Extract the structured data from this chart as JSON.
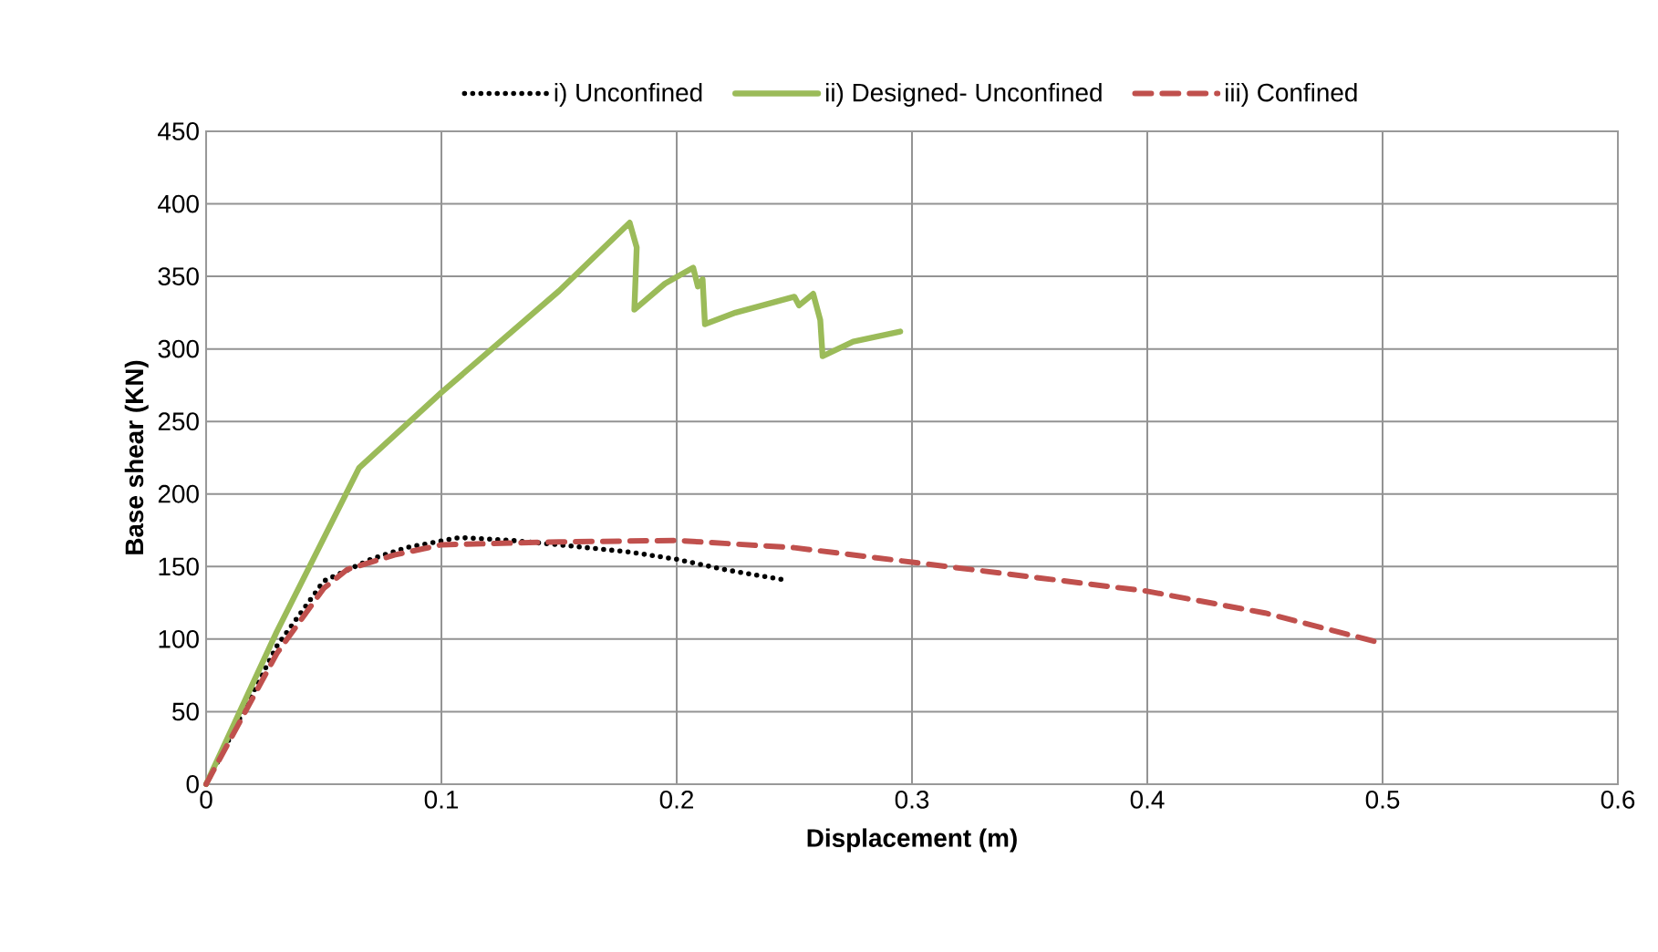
{
  "chart_data": {
    "type": "line",
    "xlabel": "Displacement (m)",
    "ylabel": "Base shear (KN)",
    "xlim": [
      0,
      0.6
    ],
    "ylim": [
      0,
      450
    ],
    "xticks": [
      0,
      0.1,
      0.2,
      0.3,
      0.4,
      0.5,
      0.6
    ],
    "yticks": [
      0,
      50,
      100,
      150,
      200,
      250,
      300,
      350,
      400,
      450
    ],
    "grid": true,
    "legend": "top",
    "marker": "none",
    "series": [
      {
        "name": "i) Unconfined",
        "color": "#000000",
        "line_style": "dotted",
        "x": [
          0,
          0.03,
          0.05,
          0.07,
          0.085,
          0.1075,
          0.13,
          0.15,
          0.18,
          0.2,
          0.22,
          0.245
        ],
        "values": [
          0,
          95,
          140,
          155,
          163,
          170,
          168,
          165,
          160,
          155,
          148,
          141
        ]
      },
      {
        "name": "ii) Designed- Unconfined",
        "color": "#9bbb59",
        "line_style": "solid",
        "x": [
          0,
          0.03,
          0.065,
          0.1,
          0.15,
          0.18,
          0.183,
          0.182,
          0.195,
          0.207,
          0.209,
          0.211,
          0.212,
          0.225,
          0.25,
          0.252,
          0.258,
          0.261,
          0.262,
          0.275,
          0.295
        ],
        "values": [
          0,
          105,
          218,
          270,
          340,
          387,
          370,
          327,
          345,
          356,
          343,
          348,
          317,
          325,
          336,
          330,
          338,
          320,
          295,
          305,
          312
        ]
      },
      {
        "name": "iii) Confined",
        "color": "#c0504d",
        "line_style": "dashed",
        "x": [
          0,
          0.03,
          0.05,
          0.06,
          0.08,
          0.1,
          0.15,
          0.2,
          0.25,
          0.3,
          0.35,
          0.4,
          0.45,
          0.5
        ],
        "values": [
          0,
          90,
          135,
          148,
          158,
          165,
          167,
          168,
          163,
          153,
          143,
          133,
          118,
          97
        ]
      }
    ]
  }
}
